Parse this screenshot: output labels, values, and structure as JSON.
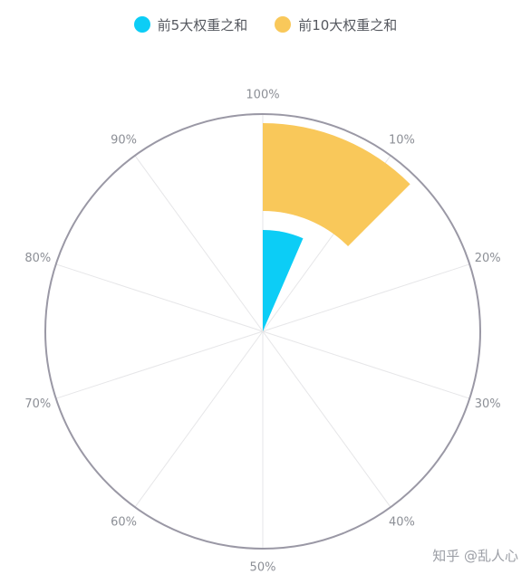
{
  "chart_data": {
    "type": "polar-bar",
    "title": "",
    "angle_axis": {
      "ticks": [
        "100%",
        "10%",
        "20%",
        "30%",
        "40%",
        "50%",
        "60%",
        "70%",
        "80%",
        "90%"
      ],
      "min": 0,
      "max": 100,
      "clockwise": true
    },
    "series": [
      {
        "name": "前5大权重之和",
        "value": 6.5,
        "color": "#0ccdf6",
        "ring": 0
      },
      {
        "name": "前10大权重之和",
        "value": 12.5,
        "color": "#f9c85a",
        "ring": 1
      }
    ],
    "legend_position": "top-center",
    "grid": true
  },
  "watermark": "知乎 @乱人心"
}
